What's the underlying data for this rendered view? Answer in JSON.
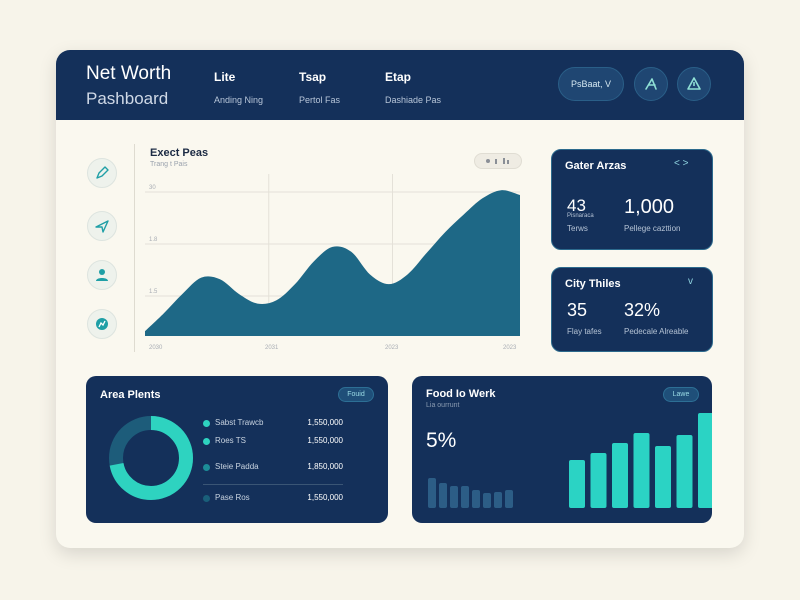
{
  "header": {
    "title": "Net Worth",
    "subtitle": "Pashboard",
    "nav": [
      {
        "label": "Lite",
        "sub": "Anding Ning"
      },
      {
        "label": "Tsap",
        "sub": "Pertol Fas"
      },
      {
        "label": "Etap",
        "sub": "Dashiade Pas"
      }
    ],
    "button_label": "PsBaat, V"
  },
  "sidebar": {
    "icons": [
      "pen-icon",
      "send-icon",
      "user-icon",
      "chart-icon"
    ]
  },
  "main_chart": {
    "title": "Exect Peas",
    "subtitle": "Trang t Pais",
    "y_ticks": [
      "30",
      "1.8",
      "1.5"
    ],
    "x_ticks": [
      "2030",
      "2031",
      "2023",
      "2023"
    ]
  },
  "chart_data": {
    "type": "area",
    "x": [
      0,
      1,
      2,
      3,
      4,
      5,
      6,
      7,
      8,
      9,
      10,
      11,
      12,
      13,
      14,
      15,
      16,
      17,
      18,
      19,
      20
    ],
    "values": [
      0.3,
      1.4,
      2.6,
      3.6,
      3.5,
      2.6,
      2.0,
      2.2,
      3.2,
      4.6,
      5.5,
      5.2,
      3.8,
      3.2,
      3.8,
      5.1,
      6.4,
      7.5,
      8.5,
      9.0,
      8.7
    ],
    "ylim": [
      0,
      10
    ],
    "grid": true,
    "color": "#1e6886"
  },
  "stat_cards": [
    {
      "title": "Gater Arzas",
      "chevron": "< >",
      "num_left": "43",
      "label_left": "Terws",
      "num_right": "1,000",
      "label_right": "Pellege cazttion",
      "sublabel_left": "Pisnaraca"
    },
    {
      "title": "City Thiles",
      "chevron": "v",
      "num_left": "35",
      "label_left": "Flay tafes",
      "num_right": "32%",
      "label_right": "Pedecale Alreable"
    }
  ],
  "area_plants": {
    "title": "Area Plents",
    "pill": "Fouid",
    "donut_fraction": 0.72,
    "legend": [
      {
        "name": "Sabst Trawcb",
        "value": "1,550,000",
        "color": "#2ed3c0"
      },
      {
        "name": "Roes TS",
        "value": "1,550,000",
        "color": "#2ed3c0"
      },
      {
        "name": "Steie Padda",
        "value": "1,850,000",
        "color": "#1c8d98"
      },
      {
        "name": "Pase Ros",
        "value": "1,550,000",
        "color": "#1a5f7a"
      }
    ]
  },
  "food_work": {
    "title": "Food Io Werk",
    "subtitle": "Lia ourrunt",
    "pill": "Lawe",
    "percent": "5%",
    "small_bars": [
      0.3,
      0.25,
      0.22,
      0.22,
      0.18,
      0.15,
      0.16,
      0.18
    ],
    "big_bars": [
      0.48,
      0.55,
      0.65,
      0.75,
      0.62,
      0.73,
      0.95
    ],
    "colors": {
      "small": "#2c5d86",
      "big": "#2bd3c4"
    }
  }
}
